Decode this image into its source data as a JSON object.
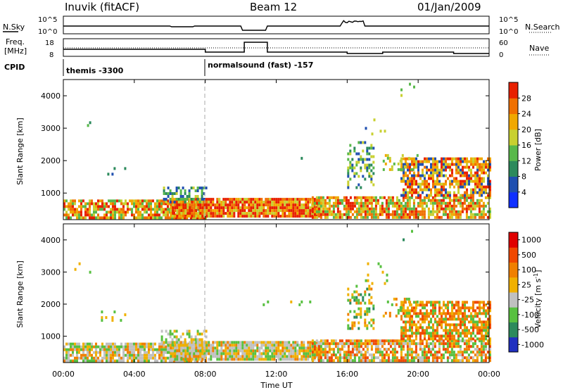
{
  "header": {
    "station": "Inuvik (fitACF)",
    "beam": "Beam 12",
    "date": "01/Jan/2009"
  },
  "noise_panel": {
    "left_label": "N.Sky",
    "right_label": "N.Search",
    "left_ticks": [
      "10^5",
      "10^0"
    ],
    "right_ticks": [
      "10^5",
      "10^0"
    ]
  },
  "freq_panel": {
    "left_label_line1": "Freq.",
    "left_label_line2": "[MHz]",
    "right_label": "Nave",
    "left_ticks": [
      "18",
      "8"
    ],
    "right_ticks": [
      "60",
      "0"
    ]
  },
  "cpid": {
    "label": "CPID",
    "segments": [
      {
        "name": "themis -3300",
        "start_hour": 0
      },
      {
        "name": "normalsound (fast) -157",
        "start_hour": 8
      }
    ]
  },
  "chart_data": [
    {
      "type": "heatmap",
      "quantity": "power",
      "ylabel": "Slant Range [km]",
      "xlabel": "Time UT",
      "x_ticks": [
        "00:00",
        "04:00",
        "08:00",
        "12:00",
        "16:00",
        "20:00",
        "00:00"
      ],
      "xlim_hours": [
        0,
        24
      ],
      "y_ticks": [
        1000,
        2000,
        3000,
        4000
      ],
      "ylim_km": [
        180,
        4500
      ],
      "colorbar": {
        "label": "Power [dB]",
        "ticks": [
          4,
          8,
          12,
          16,
          20,
          24,
          28
        ],
        "range": [
          0,
          30
        ],
        "colors": [
          "#1030ff",
          "#2050b0",
          "#2c8a5c",
          "#58b84a",
          "#c8d030",
          "#f0a800",
          "#f07000",
          "#e82000"
        ]
      }
    },
    {
      "type": "heatmap",
      "quantity": "velocity",
      "ylabel": "Slant Range [km]",
      "xlabel": "Time UT",
      "x_ticks": [
        "00:00",
        "04:00",
        "08:00",
        "12:00",
        "16:00",
        "20:00",
        "00:00"
      ],
      "xlim_hours": [
        0,
        24
      ],
      "y_ticks": [
        1000,
        2000,
        3000,
        4000
      ],
      "ylim_km": [
        180,
        4500
      ],
      "colorbar": {
        "label": "Velocity [m s^-1]",
        "ticks": [
          "1000",
          "500",
          "100",
          "25",
          "-25",
          "-100",
          "-500",
          "-1000"
        ],
        "colors": [
          "#2030c0",
          "#2c8a5c",
          "#58c040",
          "#c0c0c0",
          "#f0b000",
          "#f08000",
          "#f04800",
          "#e00000"
        ]
      }
    }
  ],
  "labels": {
    "ylabel": "Slant Range [km]",
    "xlabel": "Time UT",
    "power_cb": "Power [dB]",
    "vel_cb_a": "Velocity  [m s",
    "vel_cb_sup": "-1",
    "vel_cb_b": "]"
  }
}
